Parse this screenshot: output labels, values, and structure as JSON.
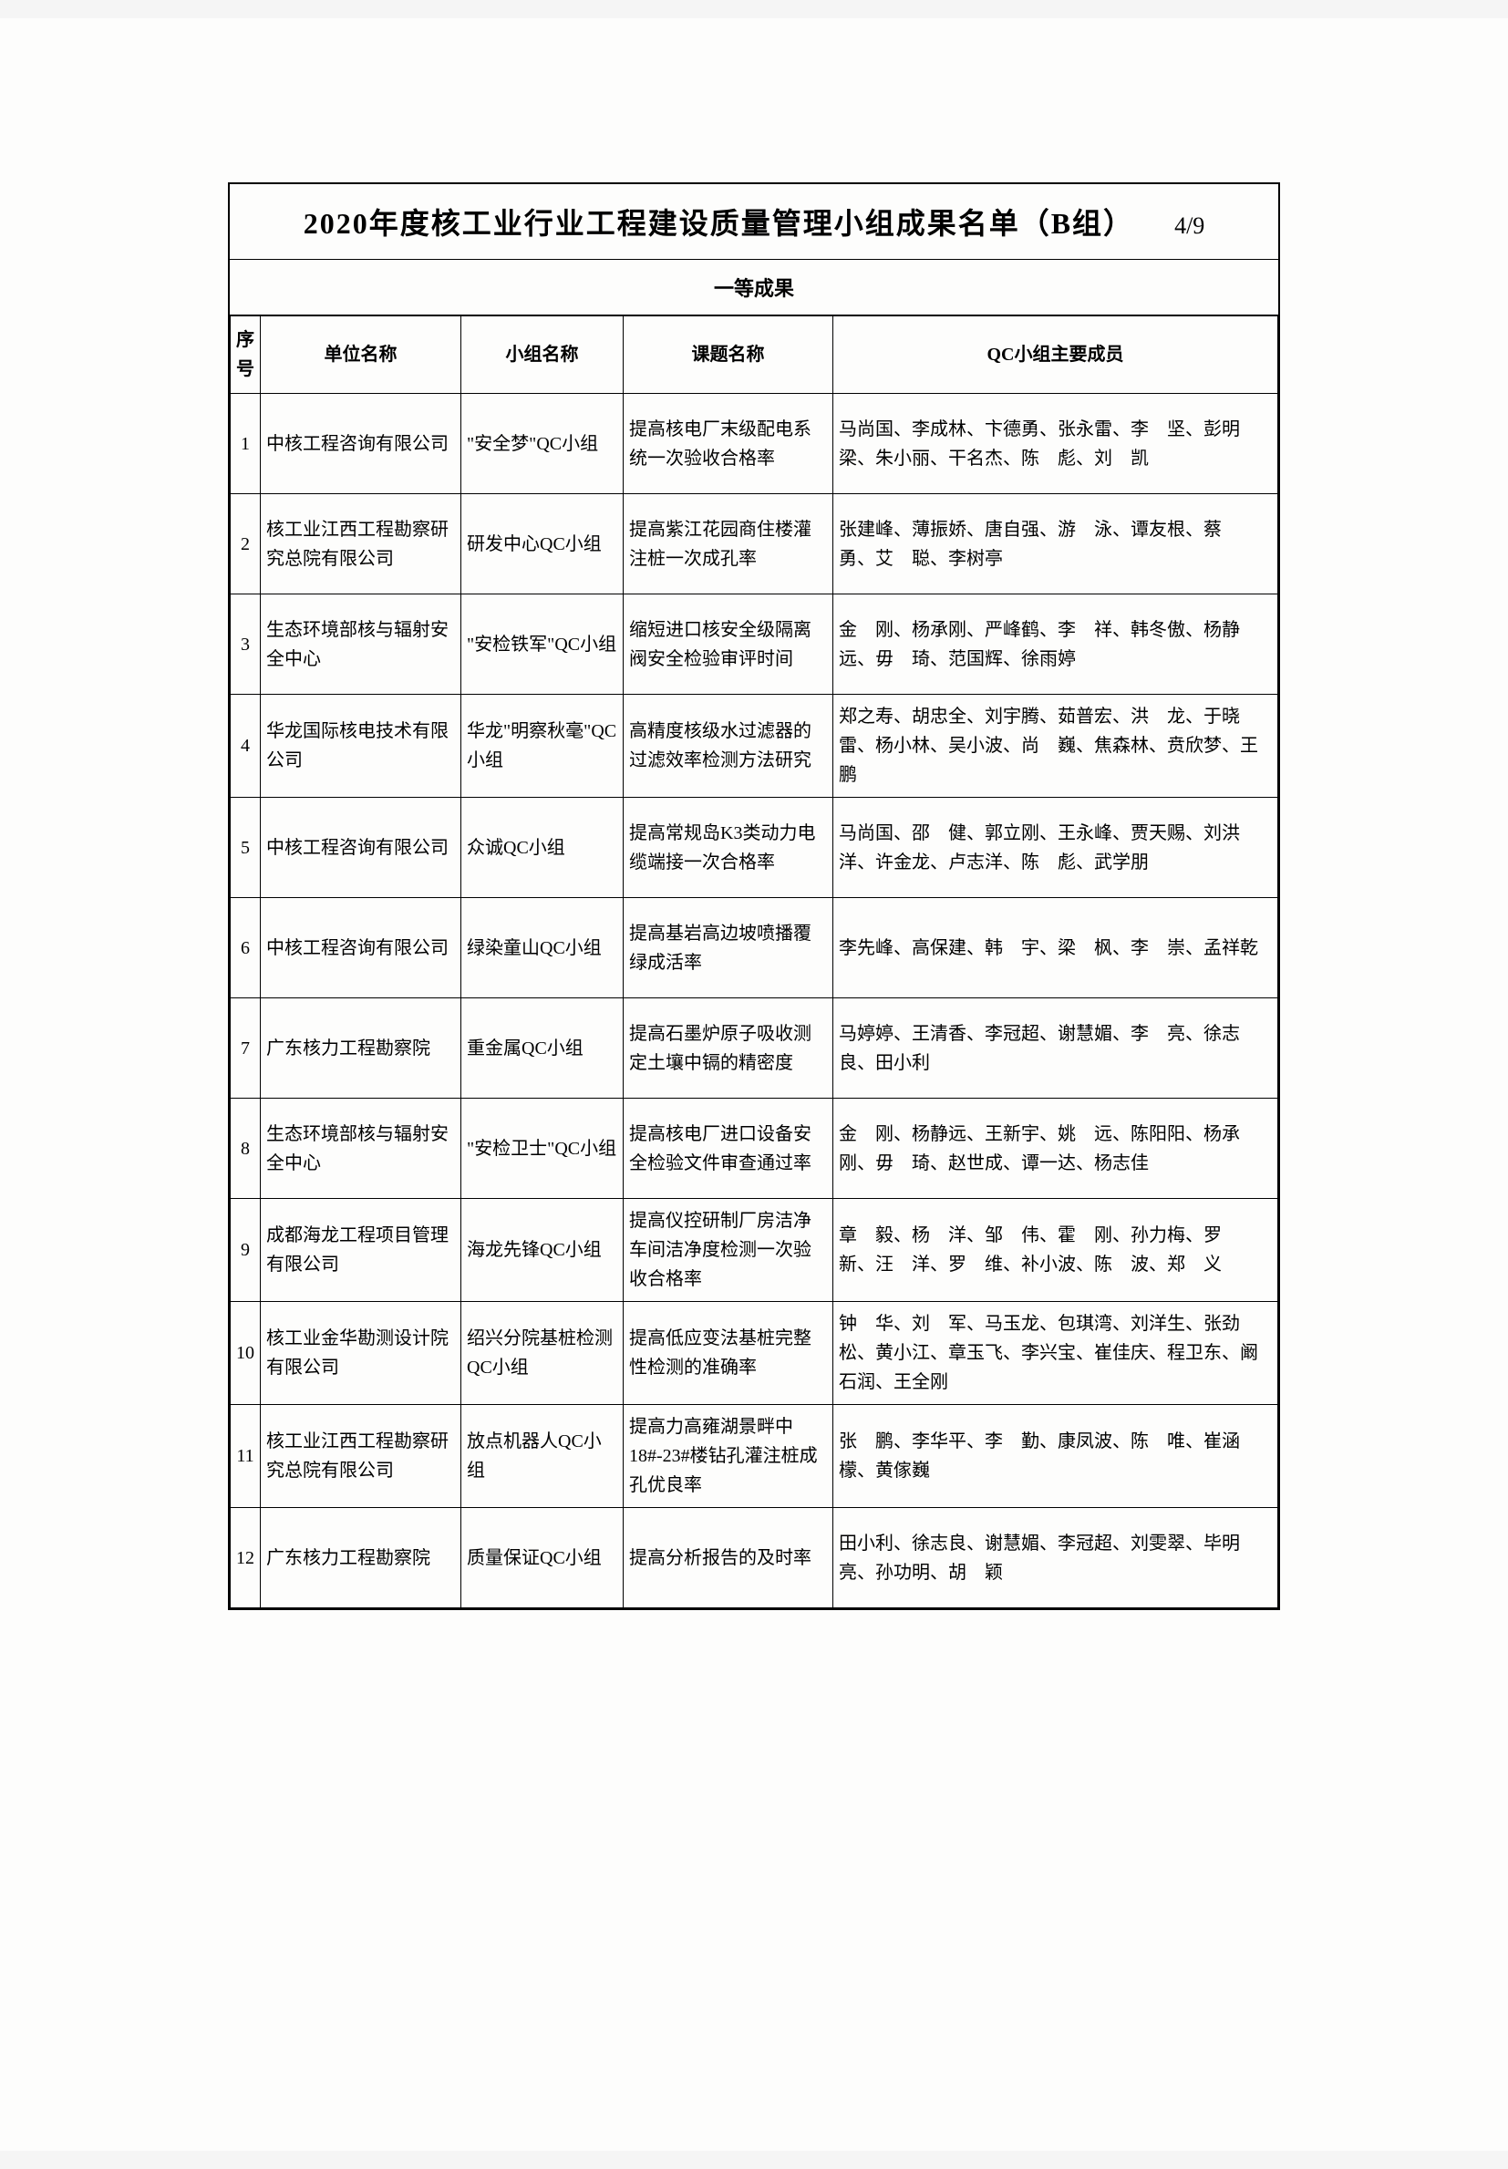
{
  "title": "2020年度核工业行业工程建设质量管理小组成果名单（B组）",
  "page_number": "4/9",
  "section": "一等成果",
  "columns": {
    "idx": "序号",
    "org": "单位名称",
    "team": "小组名称",
    "topic": "课题名称",
    "members": "QC小组主要成员"
  },
  "rows": [
    {
      "idx": "1",
      "org": "中核工程咨询有限公司",
      "team": "\"安全梦\"QC小组",
      "topic": "提高核电厂末级配电系统一次验收合格率",
      "members": "马尚国、李成林、卞德勇、张永雷、李　坚、彭明梁、朱小丽、干名杰、陈　彪、刘　凯"
    },
    {
      "idx": "2",
      "org": "核工业江西工程勘察研究总院有限公司",
      "team": "研发中心QC小组",
      "topic": "提高紫江花园商住楼灌注桩一次成孔率",
      "members": "张建峰、薄振娇、唐自强、游　泳、谭友根、蔡　勇、艾　聪、李树亭"
    },
    {
      "idx": "3",
      "org": "生态环境部核与辐射安全中心",
      "team": "\"安检铁军\"QC小组",
      "topic": "缩短进口核安全级隔离阀安全检验审评时间",
      "members": "金　刚、杨承刚、严峰鹤、李　祥、韩冬傲、杨静远、毋　琦、范国辉、徐雨婷"
    },
    {
      "idx": "4",
      "org": "华龙国际核电技术有限公司",
      "team": "华龙\"明察秋毫\"QC小组",
      "topic": "高精度核级水过滤器的过滤效率检测方法研究",
      "members": "郑之寿、胡忠全、刘宇腾、茹普宏、洪　龙、于晓雷、杨小林、吴小波、尚　巍、焦森林、贲欣梦、王　鹏"
    },
    {
      "idx": "5",
      "org": "中核工程咨询有限公司",
      "team": "众诚QC小组",
      "topic": "提高常规岛K3类动力电缆端接一次合格率",
      "members": "马尚国、邵　健、郭立刚、王永峰、贾天赐、刘洪洋、许金龙、卢志洋、陈　彪、武学朋"
    },
    {
      "idx": "6",
      "org": "中核工程咨询有限公司",
      "team": "绿染童山QC小组",
      "topic": "提高基岩高边坡喷播覆绿成活率",
      "members": "李先峰、高保建、韩　宇、梁　枫、李　崇、孟祥乾"
    },
    {
      "idx": "7",
      "org": "广东核力工程勘察院",
      "team": "重金属QC小组",
      "topic": "提高石墨炉原子吸收测定土壤中镉的精密度",
      "members": "马婷婷、王清香、李冠超、谢慧媚、李　亮、徐志良、田小利"
    },
    {
      "idx": "8",
      "org": "生态环境部核与辐射安全中心",
      "team": "\"安检卫士\"QC小组",
      "topic": "提高核电厂进口设备安全检验文件审查通过率",
      "members": "金　刚、杨静远、王新宇、姚　远、陈阳阳、杨承刚、毋　琦、赵世成、谭一达、杨志佳"
    },
    {
      "idx": "9",
      "org": "成都海龙工程项目管理有限公司",
      "team": "海龙先锋QC小组",
      "topic": "提高仪控研制厂房洁净车间洁净度检测一次验收合格率",
      "members": "章　毅、杨　洋、邹　伟、霍　刚、孙力梅、罗　新、汪　洋、罗　维、补小波、陈　波、郑　义"
    },
    {
      "idx": "10",
      "org": "核工业金华勘测设计院有限公司",
      "team": "绍兴分院基桩检测QC小组",
      "topic": "提高低应变法基桩完整性检测的准确率",
      "members": "钟　华、刘　军、马玉龙、包琪湾、刘洋生、张劲松、黄小江、章玉飞、李兴宝、崔佳庆、程卫东、阚石润、王全刚"
    },
    {
      "idx": "11",
      "org": "核工业江西工程勘察研究总院有限公司",
      "team": "放点机器人QC小组",
      "topic": "提高力高雍湖景畔中18#-23#楼钻孔灌注桩成孔优良率",
      "members": "张　鹏、李华平、李　勤、康凤波、陈　唯、崔涵檬、黄傢巍"
    },
    {
      "idx": "12",
      "org": "广东核力工程勘察院",
      "team": "质量保证QC小组",
      "topic": "提高分析报告的及时率",
      "members": "田小利、徐志良、谢慧媚、李冠超、刘雯翠、毕明亮、孙功明、胡　颖"
    }
  ]
}
